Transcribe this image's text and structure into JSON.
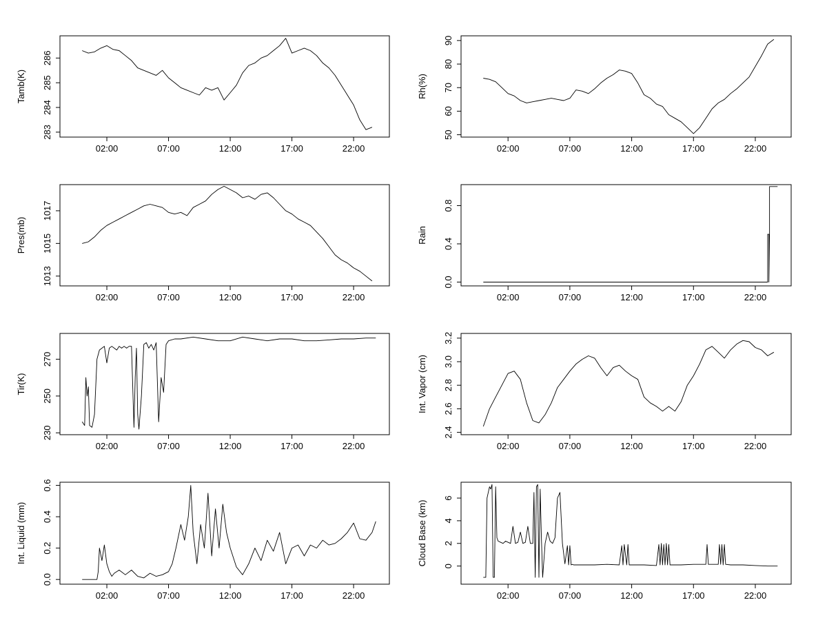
{
  "chart_data": [
    {
      "type": "line",
      "ylabel": "Tamb(K)",
      "ylim": [
        282.8,
        286.9
      ],
      "yticks": [
        283,
        284,
        285,
        286
      ],
      "yticklabels": [
        "283",
        "284",
        "285",
        "286"
      ],
      "xlim": [
        -1.8,
        24.9
      ],
      "xticks": [
        2,
        7,
        12,
        17,
        22
      ],
      "xticklabels": [
        "02:00",
        "07:00",
        "12:00",
        "17:00",
        "22:00"
      ],
      "series": [
        {
          "x": [
            0,
            0.5,
            1,
            1.5,
            2,
            2.5,
            3,
            3.5,
            4,
            4.5,
            5,
            5.5,
            6,
            6.5,
            7,
            7.5,
            8,
            8.5,
            9,
            9.5,
            10,
            10.5,
            11,
            11.5,
            12,
            12.5,
            13,
            13.5,
            14,
            14.5,
            15,
            15.5,
            16,
            16.5,
            17,
            17.5,
            18,
            18.5,
            19,
            19.5,
            20,
            20.5,
            21,
            21.5,
            22,
            22.5,
            23,
            23.5
          ],
          "y": [
            286.3,
            286.2,
            286.25,
            286.4,
            286.5,
            286.35,
            286.3,
            286.1,
            285.9,
            285.6,
            285.5,
            285.4,
            285.3,
            285.5,
            285.2,
            285.0,
            284.8,
            284.7,
            284.6,
            284.5,
            284.8,
            284.7,
            284.8,
            284.3,
            284.6,
            284.9,
            285.4,
            285.7,
            285.8,
            286.0,
            286.1,
            286.3,
            286.5,
            286.8,
            286.2,
            286.3,
            286.4,
            286.3,
            286.1,
            285.8,
            285.6,
            285.3,
            284.9,
            284.5,
            284.1,
            283.5,
            283.1,
            283.2
          ]
        }
      ]
    },
    {
      "type": "line",
      "ylabel": "Rh(%)",
      "ylim": [
        49,
        92
      ],
      "yticks": [
        50,
        60,
        70,
        80,
        90
      ],
      "yticklabels": [
        "50",
        "60",
        "70",
        "80",
        "90"
      ],
      "xlim": [
        -1.8,
        24.9
      ],
      "xticks": [
        2,
        7,
        12,
        17,
        22
      ],
      "xticklabels": [
        "02:00",
        "07:00",
        "12:00",
        "17:00",
        "22:00"
      ],
      "series": [
        {
          "x": [
            0,
            0.5,
            1,
            1.5,
            2,
            2.5,
            3,
            3.5,
            4,
            4.5,
            5,
            5.5,
            6,
            6.5,
            7,
            7.5,
            8,
            8.5,
            9,
            9.5,
            10,
            10.5,
            11,
            11.5,
            12,
            12.5,
            13,
            13.5,
            14,
            14.5,
            15,
            15.5,
            16,
            16.5,
            17,
            17.5,
            18,
            18.5,
            19,
            19.5,
            20,
            20.5,
            21,
            21.5,
            22,
            22.5,
            23,
            23.5
          ],
          "y": [
            74,
            73.5,
            72.5,
            70,
            67.5,
            66.5,
            64.5,
            63.5,
            64,
            64.5,
            65,
            65.5,
            65,
            64.5,
            65.5,
            69,
            68.5,
            67.5,
            69.5,
            72,
            74,
            75.5,
            77.5,
            77,
            76,
            72,
            67,
            65.5,
            63,
            62,
            58.5,
            57,
            55.5,
            53,
            50.5,
            53,
            57,
            61,
            63.5,
            65,
            67.5,
            69.5,
            72,
            74.5,
            79,
            83.5,
            88.5,
            90.5
          ]
        }
      ]
    },
    {
      "type": "line",
      "ylabel": "Pres(mb)",
      "ylim": [
        1012.4,
        1018.6
      ],
      "yticks": [
        1013,
        1015,
        1017
      ],
      "yticklabels": [
        "1013",
        "1015",
        "1017"
      ],
      "xlim": [
        -1.8,
        24.9
      ],
      "xticks": [
        2,
        7,
        12,
        17,
        22
      ],
      "xticklabels": [
        "02:00",
        "07:00",
        "12:00",
        "17:00",
        "22:00"
      ],
      "series": [
        {
          "x": [
            0,
            0.5,
            1,
            1.5,
            2,
            2.5,
            3,
            3.5,
            4,
            4.5,
            5,
            5.5,
            6,
            6.5,
            7,
            7.5,
            8,
            8.5,
            9,
            9.5,
            10,
            10.5,
            11,
            11.5,
            12,
            12.5,
            13,
            13.5,
            14,
            14.5,
            15,
            15.5,
            16,
            16.5,
            17,
            17.5,
            18,
            18.5,
            19,
            19.5,
            20,
            20.5,
            21,
            21.5,
            22,
            22.5,
            23,
            23.5
          ],
          "y": [
            1015.0,
            1015.1,
            1015.4,
            1015.8,
            1016.1,
            1016.3,
            1016.5,
            1016.7,
            1016.9,
            1017.1,
            1017.3,
            1017.4,
            1017.3,
            1017.2,
            1016.9,
            1016.8,
            1016.9,
            1016.7,
            1017.2,
            1017.4,
            1017.6,
            1018.0,
            1018.3,
            1018.5,
            1018.3,
            1018.1,
            1017.8,
            1017.9,
            1017.7,
            1018.0,
            1018.1,
            1017.8,
            1017.4,
            1017.0,
            1016.8,
            1016.5,
            1016.3,
            1016.1,
            1015.7,
            1015.3,
            1014.8,
            1014.3,
            1014.0,
            1013.8,
            1013.5,
            1013.3,
            1013.0,
            1012.7
          ]
        }
      ]
    },
    {
      "type": "line",
      "ylabel": "Rain",
      "ylim": [
        -0.04,
        1.02
      ],
      "yticks": [
        0,
        0.4,
        0.8
      ],
      "yticklabels": [
        "0.0",
        "0.4",
        "0.8"
      ],
      "xlim": [
        -1.8,
        24.9
      ],
      "xticks": [
        2,
        7,
        12,
        17,
        22
      ],
      "xticklabels": [
        "02:00",
        "07:00",
        "12:00",
        "17:00",
        "22:00"
      ],
      "series": [
        {
          "x": [
            0,
            23.0,
            23.0,
            23.1,
            23.1,
            23.15,
            23.15,
            23.8
          ],
          "y": [
            0,
            0,
            0.5,
            0.5,
            0,
            0.5,
            1.0,
            1.0
          ]
        }
      ]
    },
    {
      "type": "line",
      "ylabel": "Tir(K)",
      "ylim": [
        229,
        284
      ],
      "yticks": [
        230,
        250,
        270
      ],
      "yticklabels": [
        "230",
        "250",
        "270"
      ],
      "xlim": [
        -1.8,
        24.9
      ],
      "xticks": [
        2,
        7,
        12,
        17,
        22
      ],
      "xticklabels": [
        "02:00",
        "07:00",
        "12:00",
        "17:00",
        "22:00"
      ],
      "series": [
        {
          "x": [
            0,
            0.2,
            0.3,
            0.4,
            0.5,
            0.6,
            0.8,
            1.0,
            1.2,
            1.4,
            1.6,
            1.8,
            2.0,
            2.2,
            2.4,
            2.6,
            2.8,
            3.0,
            3.2,
            3.4,
            3.6,
            3.8,
            4.0,
            4.2,
            4.3,
            4.4,
            4.5,
            4.6,
            4.8,
            5.0,
            5.2,
            5.4,
            5.6,
            5.8,
            6.0,
            6.2,
            6.4,
            6.6,
            6.8,
            7.0,
            7.5,
            8,
            9,
            10,
            11,
            12,
            13,
            14,
            15,
            16,
            17,
            18,
            19,
            20,
            21,
            22,
            23,
            23.8
          ],
          "y": [
            236,
            234,
            260,
            250,
            255,
            234,
            233,
            240,
            270,
            275,
            276,
            277,
            268,
            276,
            277,
            276,
            275,
            277,
            276,
            277,
            276,
            277,
            277,
            233,
            260,
            276,
            240,
            232,
            250,
            278,
            279,
            276,
            278,
            275,
            279,
            236,
            260,
            252,
            278,
            280,
            281,
            281,
            282,
            281,
            280,
            280,
            282,
            281,
            280,
            281,
            281,
            280,
            280,
            280.5,
            281,
            281,
            281.5,
            281.5
          ]
        }
      ]
    },
    {
      "type": "line",
      "ylabel": "Int. Vapor (cm)",
      "ylim": [
        2.38,
        3.24
      ],
      "yticks": [
        2.4,
        2.6,
        2.8,
        3.0,
        3.2
      ],
      "yticklabels": [
        "2.4",
        "2.6",
        "2.8",
        "3.0",
        "3.2"
      ],
      "xlim": [
        -1.8,
        24.9
      ],
      "xticks": [
        2,
        7,
        12,
        17,
        22
      ],
      "xticklabels": [
        "02:00",
        "07:00",
        "12:00",
        "17:00",
        "22:00"
      ],
      "series": [
        {
          "x": [
            0,
            0.5,
            1,
            1.5,
            2,
            2.5,
            3,
            3.5,
            4,
            4.5,
            5,
            5.5,
            6,
            6.5,
            7,
            7.5,
            8,
            8.5,
            9,
            9.5,
            10,
            10.5,
            11,
            11.5,
            12,
            12.5,
            13,
            13.5,
            14,
            14.5,
            15,
            15.5,
            16,
            16.5,
            17,
            17.5,
            18,
            18.5,
            19,
            19.5,
            20,
            20.5,
            21,
            21.5,
            22,
            22.5,
            23,
            23.5
          ],
          "y": [
            2.45,
            2.6,
            2.7,
            2.8,
            2.9,
            2.92,
            2.85,
            2.65,
            2.5,
            2.48,
            2.55,
            2.65,
            2.78,
            2.85,
            2.92,
            2.98,
            3.02,
            3.05,
            3.03,
            2.95,
            2.88,
            2.95,
            2.97,
            2.92,
            2.88,
            2.85,
            2.7,
            2.65,
            2.62,
            2.58,
            2.62,
            2.58,
            2.66,
            2.8,
            2.88,
            2.98,
            3.1,
            3.13,
            3.08,
            3.03,
            3.1,
            3.15,
            3.18,
            3.17,
            3.12,
            3.1,
            3.05,
            3.08
          ]
        }
      ]
    },
    {
      "type": "line",
      "ylabel": "Int. Liquid (mm)",
      "ylim": [
        -0.03,
        0.62
      ],
      "yticks": [
        0,
        0.2,
        0.4,
        0.6
      ],
      "yticklabels": [
        "0.0",
        "0.2",
        "0.4",
        "0.6"
      ],
      "xlim": [
        -1.8,
        24.9
      ],
      "xticks": [
        2,
        7,
        12,
        17,
        22
      ],
      "xticklabels": [
        "02:00",
        "07:00",
        "12:00",
        "17:00",
        "22:00"
      ],
      "series": [
        {
          "x": [
            0,
            1.2,
            1.3,
            1.4,
            1.6,
            1.8,
            2.0,
            2.2,
            2.4,
            2.6,
            3.0,
            3.5,
            4.0,
            4.5,
            5.0,
            5.5,
            6.0,
            6.5,
            7.0,
            7.3,
            7.6,
            8.0,
            8.3,
            8.6,
            8.8,
            9.0,
            9.3,
            9.6,
            9.9,
            10.2,
            10.5,
            10.8,
            11.1,
            11.4,
            11.7,
            12.0,
            12.5,
            13.0,
            13.5,
            14.0,
            14.5,
            15.0,
            15.5,
            16.0,
            16.5,
            17.0,
            17.5,
            18.0,
            18.5,
            19.0,
            19.5,
            20.0,
            20.5,
            21.0,
            21.5,
            22.0,
            22.5,
            23.0,
            23.5,
            23.8
          ],
          "y": [
            0,
            0,
            0.05,
            0.2,
            0.12,
            0.22,
            0.1,
            0.05,
            0.02,
            0.04,
            0.06,
            0.03,
            0.06,
            0.02,
            0.01,
            0.04,
            0.02,
            0.03,
            0.05,
            0.1,
            0.2,
            0.35,
            0.25,
            0.4,
            0.6,
            0.3,
            0.1,
            0.35,
            0.2,
            0.55,
            0.15,
            0.45,
            0.2,
            0.48,
            0.3,
            0.2,
            0.08,
            0.03,
            0.1,
            0.2,
            0.12,
            0.25,
            0.18,
            0.3,
            0.1,
            0.2,
            0.22,
            0.15,
            0.22,
            0.2,
            0.25,
            0.22,
            0.23,
            0.26,
            0.3,
            0.36,
            0.26,
            0.25,
            0.3,
            0.37
          ]
        }
      ]
    },
    {
      "type": "line",
      "ylabel": "Cloud Base (km)",
      "ylim": [
        -1.6,
        7.4
      ],
      "yticks": [
        0,
        2,
        4,
        6
      ],
      "yticklabels": [
        "0",
        "2",
        "4",
        "6"
      ],
      "xlim": [
        -1.8,
        24.9
      ],
      "xticks": [
        2,
        7,
        12,
        17,
        22
      ],
      "xticklabels": [
        "02:00",
        "07:00",
        "12:00",
        "17:00",
        "22:00"
      ],
      "series": [
        {
          "x": [
            0,
            0.2,
            0.3,
            0.4,
            0.5,
            0.6,
            0.7,
            0.8,
            0.9,
            1.0,
            1.1,
            1.2,
            1.4,
            1.6,
            1.8,
            2.0,
            2.2,
            2.4,
            2.6,
            2.8,
            3.0,
            3.2,
            3.4,
            3.6,
            3.8,
            4.0,
            4.1,
            4.2,
            4.3,
            4.4,
            4.5,
            4.6,
            4.7,
            4.8,
            5.0,
            5.2,
            5.4,
            5.6,
            5.8,
            6.0,
            6.2,
            6.4,
            6.6,
            6.8,
            6.9,
            7.0,
            7.1,
            7.2,
            7.3,
            7.5,
            8,
            9,
            10,
            11,
            11.2,
            11.3,
            11.4,
            11.6,
            11.7,
            11.8,
            12,
            13,
            14,
            14.2,
            14.3,
            14.4,
            14.5,
            14.6,
            14.7,
            14.8,
            14.9,
            15.0,
            15.1,
            16,
            17,
            18,
            18.1,
            18.2,
            18.4,
            19,
            19.1,
            19.2,
            19.3,
            19.4,
            19.5,
            19.6,
            20,
            21,
            22,
            23,
            23.8
          ],
          "y": [
            -1,
            -1,
            6,
            6.5,
            7,
            6.8,
            7.2,
            -1,
            -1,
            7,
            2.5,
            2.2,
            2.1,
            2.0,
            2.2,
            2.1,
            2.0,
            3.5,
            2.0,
            2.1,
            3.0,
            2.0,
            2.1,
            3.5,
            2.0,
            2.0,
            6.5,
            -1,
            7,
            7.2,
            -1,
            6.8,
            2.5,
            -1,
            2.0,
            3.0,
            2.2,
            2.0,
            2.5,
            6.0,
            6.5,
            2.0,
            0.2,
            1.8,
            0.1,
            1.8,
            0.1,
            0.15,
            0.1,
            0.1,
            0.1,
            0.1,
            0.15,
            0.1,
            1.8,
            0.1,
            1.9,
            0.1,
            1.9,
            0.1,
            0.1,
            0.1,
            0.05,
            1.9,
            0.1,
            2.0,
            0.1,
            1.9,
            0.1,
            2.0,
            0.1,
            1.9,
            0.1,
            0.1,
            0.15,
            0.15,
            1.9,
            0.15,
            0.15,
            0.15,
            1.9,
            0.15,
            1.9,
            0.1,
            1.9,
            0.15,
            0.1,
            0.1,
            0.05,
            0,
            0
          ]
        }
      ]
    }
  ]
}
